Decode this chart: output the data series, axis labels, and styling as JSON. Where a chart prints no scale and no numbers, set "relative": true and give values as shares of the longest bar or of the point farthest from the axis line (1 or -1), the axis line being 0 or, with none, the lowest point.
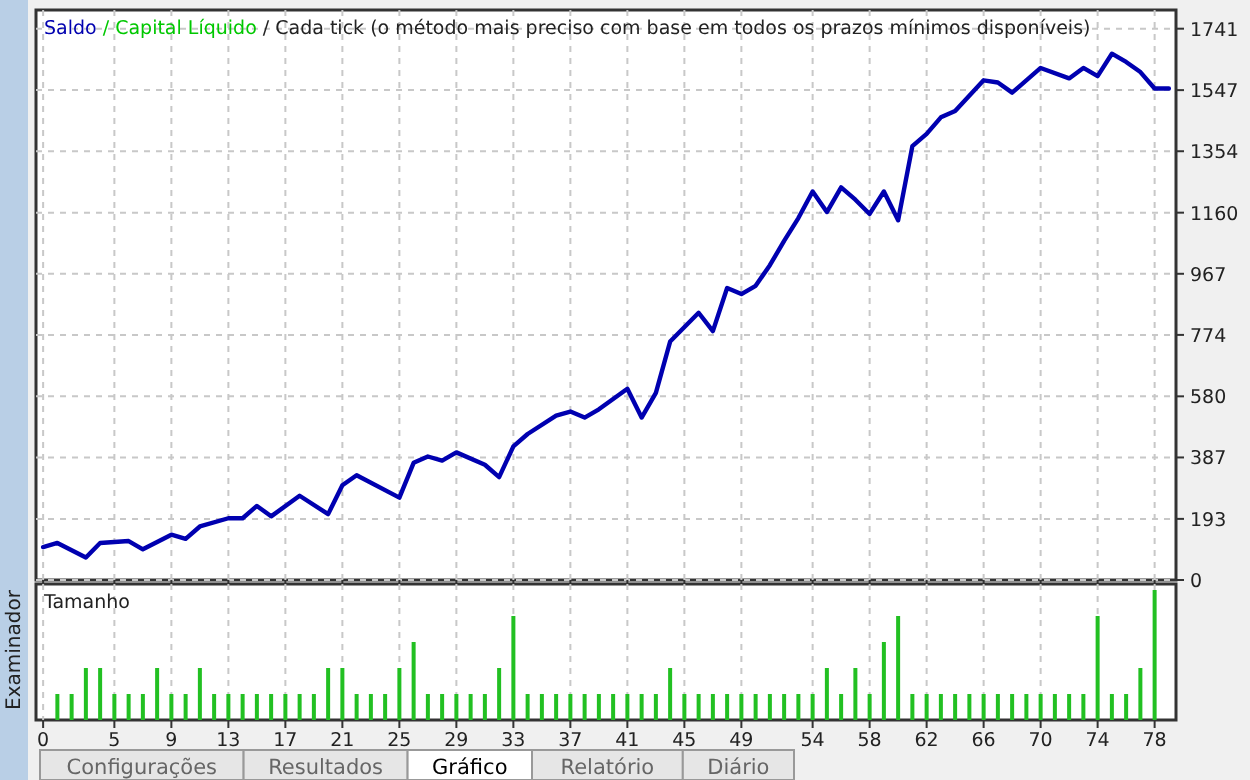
{
  "chart_data": [
    {
      "type": "line",
      "title": "/ Cada tick (o método mais preciso com base em todos os prazos mínimos disponíveis)",
      "x": [
        0,
        1,
        3,
        4,
        6,
        7,
        9,
        10,
        11,
        13,
        14,
        15,
        16,
        18,
        20,
        21,
        22,
        25,
        26,
        27,
        28,
        29,
        31,
        32,
        33,
        34,
        36,
        37,
        38,
        39,
        41,
        42,
        43,
        44,
        46,
        47,
        48,
        49,
        50,
        51,
        52,
        53,
        54,
        55,
        56,
        57,
        58,
        59,
        60,
        61,
        62,
        63,
        64,
        66,
        67,
        68,
        70,
        72,
        73,
        74,
        75,
        76,
        77,
        78,
        79
      ],
      "series": [
        {
          "name": "Saldo",
          "color": "#0000b0",
          "values": [
            104,
            117,
            71,
            117,
            123,
            97,
            143,
            130,
            169,
            195,
            195,
            234,
            201,
            266,
            208,
            299,
            331,
            260,
            370,
            390,
            377,
            403,
            364,
            325,
            422,
            461,
            519,
            532,
            513,
            539,
            604,
            513,
            591,
            753,
            844,
            786,
            922,
            903,
            929,
            994,
            1071,
            1143,
            1227,
            1162,
            1240,
            1201,
            1156,
            1227,
            1136,
            1370,
            1409,
            1461,
            1481,
            1578,
            1571,
            1539,
            1617,
            1584,
            1617,
            1591,
            1662,
            1636,
            1604,
            1552,
            1552
          ]
        },
        {
          "name": "/ Capital Líquido",
          "color": "#00c800",
          "values": [
            null,
            null,
            null,
            null,
            null,
            null,
            null,
            null,
            null,
            null,
            null,
            null,
            null,
            null,
            null,
            null,
            null,
            null,
            null,
            null,
            null,
            null,
            null,
            null,
            null,
            null,
            null,
            null,
            null,
            null,
            null,
            null,
            null,
            null,
            null,
            null,
            null,
            null,
            null,
            null,
            null,
            null,
            null,
            null,
            null,
            null,
            null,
            null,
            null,
            null,
            null,
            null,
            null,
            null,
            null,
            null,
            null,
            null,
            null,
            null,
            null,
            null,
            null,
            null,
            null
          ]
        }
      ],
      "xlim": [
        -0.5,
        79.5
      ],
      "xticks": [
        0,
        5,
        9,
        13,
        17,
        21,
        25,
        29,
        33,
        37,
        41,
        45,
        49,
        54,
        58,
        62,
        66,
        70,
        74,
        78
      ],
      "ylim": [
        0,
        1800
      ],
      "yticks": [
        0,
        193,
        387,
        580,
        774,
        967,
        1160,
        1354,
        1547,
        1741
      ],
      "grid": true,
      "legend": "top left",
      "tick_labels": "y",
      "annotations": [
        "Configurações",
        "Resultados",
        "Gráfico",
        "Relatório",
        "Diário",
        "Examinador"
      ]
    },
    {
      "type": "bar",
      "title": "Tamanho",
      "relative": true,
      "color": "#22c022",
      "x": [
        1,
        2,
        3,
        4,
        5,
        6,
        7,
        8,
        9,
        10,
        11,
        12,
        13,
        14,
        15,
        16,
        17,
        18,
        19,
        20,
        21,
        22,
        23,
        24,
        25,
        26,
        27,
        28,
        29,
        30,
        31,
        32,
        33,
        34,
        35,
        36,
        37,
        38,
        39,
        40,
        41,
        42,
        43,
        44,
        45,
        46,
        47,
        48,
        49,
        50,
        51,
        52,
        53,
        54,
        55,
        56,
        57,
        58,
        59,
        60,
        61,
        62,
        63,
        64,
        65,
        66,
        67,
        68,
        69,
        70,
        71,
        72,
        73,
        74,
        75,
        76,
        77,
        78
      ],
      "values": [
        0.2,
        0.2,
        0.4,
        0.4,
        0.2,
        0.2,
        0.2,
        0.4,
        0.2,
        0.2,
        0.4,
        0.2,
        0.2,
        0.2,
        0.2,
        0.2,
        0.2,
        0.2,
        0.2,
        0.4,
        0.4,
        0.2,
        0.2,
        0.2,
        0.4,
        0.6,
        0.2,
        0.2,
        0.2,
        0.2,
        0.2,
        0.4,
        0.8,
        0.2,
        0.2,
        0.2,
        0.2,
        0.2,
        0.2,
        0.2,
        0.2,
        0.2,
        0.2,
        0.4,
        0.2,
        0.2,
        0.2,
        0.2,
        0.2,
        0.2,
        0.2,
        0.2,
        0.2,
        0.2,
        0.4,
        0.2,
        0.4,
        0.2,
        0.6,
        0.8,
        0.2,
        0.2,
        0.2,
        0.2,
        0.2,
        0.2,
        0.2,
        0.2,
        0.2,
        0.2,
        0.2,
        0.2,
        0.2,
        0.8,
        0.2,
        0.2,
        0.4,
        1
      ],
      "xlim": [
        -0.5,
        79.5
      ],
      "xticks": [
        0,
        5,
        9,
        13,
        17,
        21,
        25,
        29,
        33,
        37,
        41,
        45,
        49,
        54,
        58,
        62,
        66,
        70,
        74,
        78
      ],
      "grid": "x",
      "tick_labels": "x"
    }
  ]
}
